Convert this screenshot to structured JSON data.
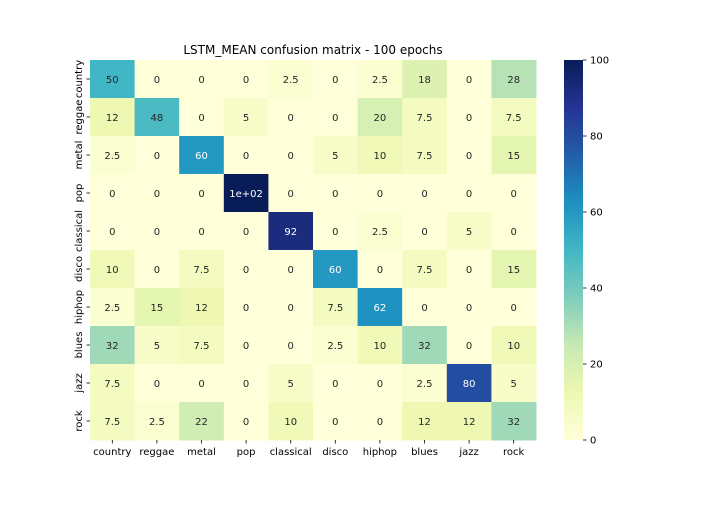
{
  "chart_data": {
    "type": "heatmap",
    "title": "LSTM_MEAN confusion matrix - 100 epochs",
    "xlabel": "",
    "ylabel": "",
    "x_categories": [
      "country",
      "reggae",
      "metal",
      "pop",
      "classical",
      "disco",
      "hiphop",
      "blues",
      "jazz",
      "rock"
    ],
    "y_categories": [
      "country",
      "reggae",
      "metal",
      "pop",
      "classical",
      "disco",
      "hiphop",
      "blues",
      "jazz",
      "rock"
    ],
    "values": [
      [
        50,
        0,
        0,
        0,
        2.5,
        0,
        2.5,
        18,
        0,
        28
      ],
      [
        12,
        48,
        0,
        5,
        0,
        0,
        20,
        7.5,
        0,
        7.5
      ],
      [
        2.5,
        0,
        60,
        0,
        0,
        5,
        10,
        7.5,
        0,
        15
      ],
      [
        0,
        0,
        0,
        100,
        0,
        0,
        0,
        0,
        0,
        0
      ],
      [
        0,
        0,
        0,
        0,
        92,
        0,
        2.5,
        0,
        5,
        0
      ],
      [
        10,
        0,
        7.5,
        0,
        0,
        60,
        0,
        7.5,
        0,
        15
      ],
      [
        2.5,
        15,
        12,
        0,
        0,
        7.5,
        62,
        0,
        0,
        0
      ],
      [
        32,
        5,
        7.5,
        0,
        0,
        2.5,
        10,
        32,
        0,
        10
      ],
      [
        7.5,
        0,
        0,
        0,
        5,
        0,
        0,
        2.5,
        80,
        5
      ],
      [
        7.5,
        2.5,
        22,
        0,
        10,
        0,
        0,
        12,
        12,
        32
      ]
    ],
    "annotations": [
      [
        "50",
        "0",
        "0",
        "0",
        "2.5",
        "0",
        "2.5",
        "18",
        "0",
        "28"
      ],
      [
        "12",
        "48",
        "0",
        "5",
        "0",
        "0",
        "20",
        "7.5",
        "0",
        "7.5"
      ],
      [
        "2.5",
        "0",
        "60",
        "0",
        "0",
        "5",
        "10",
        "7.5",
        "0",
        "15"
      ],
      [
        "0",
        "0",
        "0",
        "1e+02",
        "0",
        "0",
        "0",
        "0",
        "0",
        "0"
      ],
      [
        "0",
        "0",
        "0",
        "0",
        "92",
        "0",
        "2.5",
        "0",
        "5",
        "0"
      ],
      [
        "10",
        "0",
        "7.5",
        "0",
        "0",
        "60",
        "0",
        "7.5",
        "0",
        "15"
      ],
      [
        "2.5",
        "15",
        "12",
        "0",
        "0",
        "7.5",
        "62",
        "0",
        "0",
        "0"
      ],
      [
        "32",
        "5",
        "7.5",
        "0",
        "0",
        "2.5",
        "10",
        "32",
        "0",
        "10"
      ],
      [
        "7.5",
        "0",
        "0",
        "0",
        "5",
        "0",
        "0",
        "2.5",
        "80",
        "5"
      ],
      [
        "7.5",
        "2.5",
        "22",
        "0",
        "10",
        "0",
        "0",
        "12",
        "12",
        "32"
      ]
    ],
    "vmin": 0,
    "vmax": 100,
    "colormap": "YlGnBu",
    "colorbar_ticks": [
      0,
      20,
      40,
      60,
      80,
      100
    ]
  }
}
